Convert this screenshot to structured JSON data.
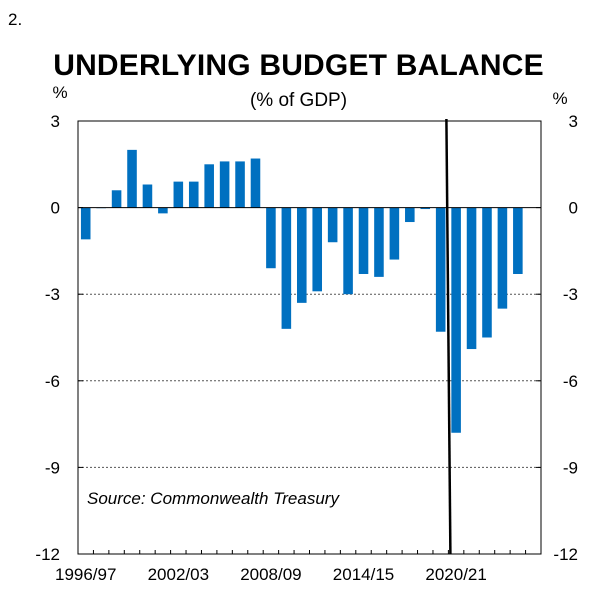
{
  "figure_number": "2.",
  "chart_data": {
    "type": "bar",
    "title": "UNDERLYING BUDGET BALANCE",
    "subtitle": "(% of GDP)",
    "ylabel_left": "%",
    "ylabel_right": "%",
    "ylim": [
      -12,
      3
    ],
    "yticks": [
      3,
      0,
      -3,
      -6,
      -9,
      -12
    ],
    "ytick_labels": [
      "3",
      "0",
      "-3",
      "-6",
      "-9",
      "-12"
    ],
    "xtick_labels": [
      "1996/97",
      "2002/03",
      "2008/09",
      "2014/15",
      "2020/21"
    ],
    "xtick_categories": [
      "1996/97",
      "2002/03",
      "2008/09",
      "2014/15",
      "2020/21"
    ],
    "categories": [
      "1996/97",
      "1997/98",
      "1998/99",
      "1999/00",
      "2000/01",
      "2001/02",
      "2002/03",
      "2003/04",
      "2004/05",
      "2005/06",
      "2006/07",
      "2007/08",
      "2008/09",
      "2009/10",
      "2010/11",
      "2011/12",
      "2012/13",
      "2013/14",
      "2014/15",
      "2015/16",
      "2016/17",
      "2017/18",
      "2018/19",
      "2019/20",
      "2020/21",
      "2021/22",
      "2022/23",
      "2023/24",
      "2024/25"
    ],
    "values": [
      -1.1,
      0.0,
      0.6,
      2.0,
      0.8,
      -0.2,
      0.9,
      0.9,
      1.5,
      1.6,
      1.6,
      1.7,
      -2.1,
      -4.2,
      -3.3,
      -2.9,
      -1.2,
      -3.0,
      -2.3,
      -2.4,
      -1.8,
      -0.5,
      -0.05,
      -4.3,
      -7.8,
      -4.9,
      -4.5,
      -3.5,
      -2.3
    ],
    "bar_color": "#0070C0",
    "grid": true,
    "gridline_style": "dotted",
    "vertical_marker_after_category": "2019/20",
    "annotation": "Source: Commonwealth Treasury"
  }
}
